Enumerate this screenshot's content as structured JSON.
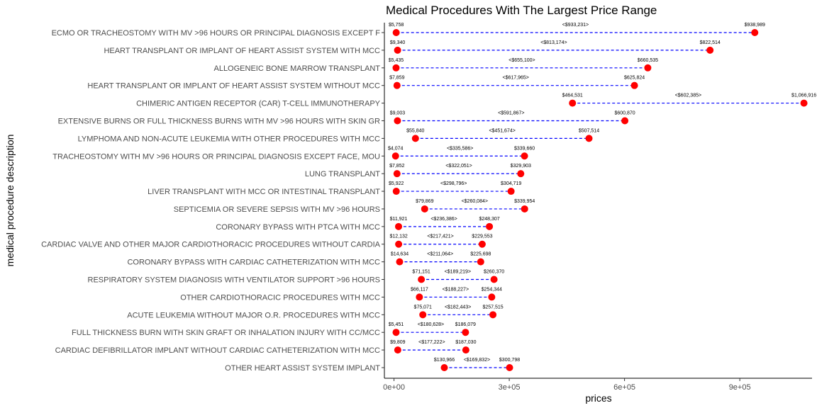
{
  "chart_data": {
    "type": "dumbbell",
    "title": "Medical Procedures With The Largest Price Range",
    "xlabel": "prices",
    "ylabel": "medical procedure description",
    "xlim": [
      -25000,
      1088000
    ],
    "x_ticks": [
      0,
      300000,
      600000,
      900000
    ],
    "x_tick_labels": [
      "0e+00",
      "3e+05",
      "6e+05",
      "9e+05"
    ],
    "grid": false,
    "legend": "none",
    "colors": {
      "point": "#ff0000",
      "segment": "#0000ff",
      "axis": "#000000",
      "label": "#4d4d4d"
    },
    "rows": [
      {
        "label": "ECMO OR TRACHEOSTOMY WITH MV >96 HOURS OR PRINCIPAL DIAGNOSIS EXCEPT F",
        "min": 5758,
        "max": 938989,
        "min_label": "$5,758",
        "max_label": "$938,989",
        "range_label": "<$933,231>"
      },
      {
        "label": "HEART TRANSPLANT OR IMPLANT OF HEART ASSIST SYSTEM WITH MCC",
        "min": 9340,
        "max": 822514,
        "min_label": "$9,340",
        "max_label": "$822,514",
        "range_label": "<$813,174>"
      },
      {
        "label": "ALLOGENEIC BONE MARROW TRANSPLANT",
        "min": 5435,
        "max": 660535,
        "min_label": "$5,435",
        "max_label": "$660,535",
        "range_label": "<$655,100>"
      },
      {
        "label": "HEART TRANSPLANT OR IMPLANT OF HEART ASSIST SYSTEM WITHOUT MCC",
        "min": 7859,
        "max": 625824,
        "min_label": "$7,859",
        "max_label": "$625,824",
        "range_label": "<$617,965>"
      },
      {
        "label": "CHIMERIC ANTIGEN RECEPTOR (CAR) T-CELL IMMUNOTHERAPY",
        "min": 464531,
        "max": 1066916,
        "min_label": "$464,531",
        "max_label": "$1,066,916",
        "range_label": "<$602,385>"
      },
      {
        "label": "EXTENSIVE BURNS OR FULL THICKNESS BURNS WITH MV >96 HOURS WITH SKIN GR",
        "min": 9003,
        "max": 600870,
        "min_label": "$9,003",
        "max_label": "$600,870",
        "range_label": "<$591,867>"
      },
      {
        "label": "LYMPHOMA AND NON-ACUTE LEUKEMIA WITH OTHER PROCEDURES WITH MCC",
        "min": 55840,
        "max": 507514,
        "min_label": "$55,840",
        "max_label": "$507,514",
        "range_label": "<$451,674>"
      },
      {
        "label": "TRACHEOSTOMY WITH MV >96 HOURS OR PRINCIPAL DIAGNOSIS EXCEPT FACE, MOU",
        "min": 4074,
        "max": 339660,
        "min_label": "$4,074",
        "max_label": "$339,660",
        "range_label": "<$335,586>"
      },
      {
        "label": "LUNG TRANSPLANT",
        "min": 7852,
        "max": 329903,
        "min_label": "$7,852",
        "max_label": "$329,903",
        "range_label": "<$322,051>"
      },
      {
        "label": "LIVER TRANSPLANT WITH MCC OR INTESTINAL TRANSPLANT",
        "min": 5922,
        "max": 304719,
        "min_label": "$5,922",
        "max_label": "$304,719",
        "range_label": "<$298,796>"
      },
      {
        "label": "SEPTICEMIA OR SEVERE SEPSIS WITH MV >96 HOURS",
        "min": 79869,
        "max": 339954,
        "min_label": "$79,869",
        "max_label": "$339,954",
        "range_label": "<$260,084>"
      },
      {
        "label": "CORONARY BYPASS WITH PTCA WITH MCC",
        "min": 11921,
        "max": 248307,
        "min_label": "$11,921",
        "max_label": "$248,307",
        "range_label": "<$236,386>"
      },
      {
        "label": "CARDIAC VALVE AND OTHER MAJOR CARDIOTHORACIC PROCEDURES WITHOUT CARDIA",
        "min": 12132,
        "max": 229553,
        "min_label": "$12,132",
        "max_label": "$229,553",
        "range_label": "<$217,421>"
      },
      {
        "label": "CORONARY BYPASS WITH CARDIAC CATHETERIZATION WITH MCC",
        "min": 14634,
        "max": 225698,
        "min_label": "$14,634",
        "max_label": "$225,698",
        "range_label": "<$211,064>"
      },
      {
        "label": "RESPIRATORY SYSTEM DIAGNOSIS WITH VENTILATOR SUPPORT >96 HOURS",
        "min": 71151,
        "max": 260370,
        "min_label": "$71,151",
        "max_label": "$260,370",
        "range_label": "<$189,219>"
      },
      {
        "label": "OTHER CARDIOTHORACIC PROCEDURES WITH MCC",
        "min": 66117,
        "max": 254344,
        "min_label": "$66,117",
        "max_label": "$254,344",
        "range_label": "<$188,227>"
      },
      {
        "label": "ACUTE LEUKEMIA WITHOUT MAJOR O.R. PROCEDURES WITH MCC",
        "min": 75071,
        "max": 257515,
        "min_label": "$75,071",
        "max_label": "$257,515",
        "range_label": "<$182,443>"
      },
      {
        "label": "FULL THICKNESS BURN WITH SKIN GRAFT OR INHALATION INJURY WITH CC/MCC",
        "min": 5451,
        "max": 186079,
        "min_label": "$5,451",
        "max_label": "$186,079",
        "range_label": "<$180,628>"
      },
      {
        "label": "CARDIAC DEFIBRILLATOR IMPLANT WITHOUT CARDIAC CATHETERIZATION WITH MCC",
        "min": 9809,
        "max": 187030,
        "min_label": "$9,809",
        "max_label": "$187,030",
        "range_label": "<$177,222>"
      },
      {
        "label": "OTHER HEART ASSIST SYSTEM IMPLANT",
        "min": 130966,
        "max": 300798,
        "min_label": "$130,966",
        "max_label": "$300,798",
        "range_label": "<$169,832>"
      }
    ]
  }
}
